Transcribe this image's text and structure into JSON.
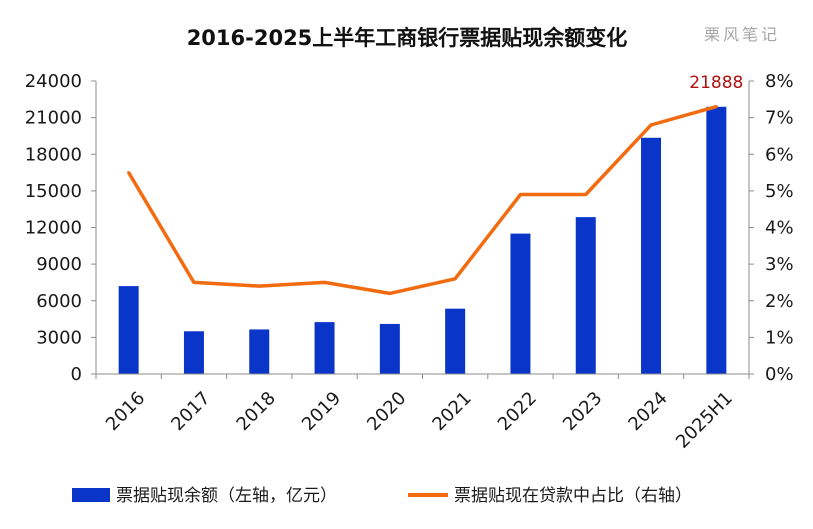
{
  "title": "2016-2025上半年工商银行票据贴现余额变化",
  "watermark": "栗风笔记",
  "colors": {
    "bar": "#0a35c9",
    "line": "#f26b0f",
    "data_label": "#b01010",
    "axis": "#8c8c8c"
  },
  "chart_data": {
    "type": "bar+line",
    "categories": [
      "2016",
      "2017",
      "2018",
      "2019",
      "2020",
      "2021",
      "2022",
      "2023",
      "2024",
      "2025H1"
    ],
    "series": [
      {
        "name": "票据贴现余额（左轴，亿元）",
        "type": "bar",
        "axis": "left",
        "values": [
          7200,
          3500,
          3650,
          4250,
          4100,
          5350,
          11500,
          12850,
          19350,
          21888
        ]
      },
      {
        "name": "票据贴现在贷款中占比（右轴）",
        "type": "line",
        "axis": "right",
        "values": [
          5.5,
          2.5,
          2.4,
          2.5,
          2.2,
          2.6,
          4.9,
          4.9,
          6.8,
          7.3
        ]
      }
    ],
    "y_left": {
      "lim": [
        0,
        24000
      ],
      "ticks": [
        "0",
        "3000",
        "6000",
        "9000",
        "12000",
        "15000",
        "18000",
        "21000",
        "24000"
      ]
    },
    "y_right": {
      "lim": [
        0,
        8
      ],
      "ticks": [
        "0%",
        "1%",
        "2%",
        "3%",
        "4%",
        "5%",
        "6%",
        "7%",
        "8%"
      ]
    },
    "data_labels": [
      {
        "category": "2025H1",
        "text": "21888"
      }
    ],
    "grid": false,
    "legend_position": "bottom"
  }
}
